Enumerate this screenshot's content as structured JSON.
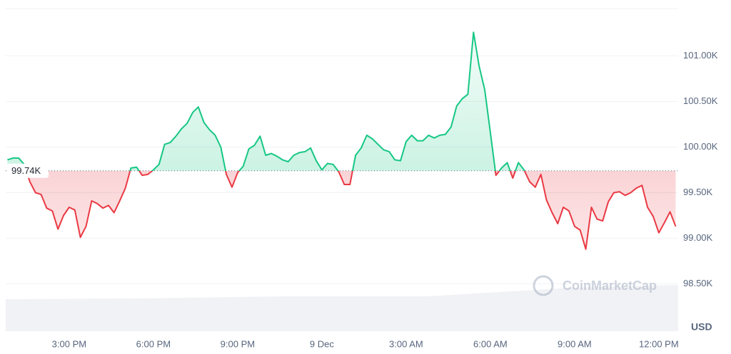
{
  "chart_data": {
    "type": "line",
    "watermark": "CoinMarketCap",
    "currency_label": "USD",
    "baseline": {
      "value": 99740,
      "label": "99.74K"
    },
    "color_up": "#16c784",
    "color_down": "#ea3943",
    "grid": true,
    "xlim": [
      12.74,
      36.69
    ],
    "ylim": [
      97980,
      101520
    ],
    "xticks": [
      {
        "value": 15,
        "label": "3:00 PM"
      },
      {
        "value": 18,
        "label": "6:00 PM"
      },
      {
        "value": 21,
        "label": "9:00 PM"
      },
      {
        "value": 24,
        "label": "9 Dec"
      },
      {
        "value": 27,
        "label": "3:00 AM"
      },
      {
        "value": 30,
        "label": "6:00 AM"
      },
      {
        "value": 33,
        "label": "9:00 AM"
      },
      {
        "value": 36,
        "label": "12:00 PM"
      }
    ],
    "yticks": [
      {
        "value": 98500,
        "label": "98.50K"
      },
      {
        "value": 99000,
        "label": "99.00K"
      },
      {
        "value": 99500,
        "label": "99.50K"
      },
      {
        "value": 100000,
        "label": "100.00K"
      },
      {
        "value": 100500,
        "label": "100.50K"
      },
      {
        "value": 101000,
        "label": "101.00K"
      }
    ],
    "x": [
      12.8,
      13.0,
      13.2,
      13.4,
      13.6,
      13.8,
      14.0,
      14.2,
      14.4,
      14.6,
      14.8,
      15.0,
      15.2,
      15.4,
      15.6,
      15.8,
      16.0,
      16.2,
      16.4,
      16.6,
      16.8,
      17.0,
      17.2,
      17.4,
      17.6,
      17.8,
      18.0,
      18.2,
      18.4,
      18.6,
      18.8,
      19.0,
      19.2,
      19.4,
      19.6,
      19.8,
      20.0,
      20.2,
      20.4,
      20.6,
      20.8,
      21.0,
      21.2,
      21.4,
      21.6,
      21.8,
      22.0,
      22.2,
      22.4,
      22.6,
      22.8,
      23.0,
      23.2,
      23.4,
      23.6,
      23.8,
      24.0,
      24.2,
      24.4,
      24.6,
      24.8,
      25.0,
      25.2,
      25.4,
      25.6,
      25.8,
      26.0,
      26.2,
      26.4,
      26.6,
      26.8,
      27.0,
      27.2,
      27.4,
      27.6,
      27.8,
      28.0,
      28.2,
      28.4,
      28.6,
      28.8,
      29.0,
      29.2,
      29.4,
      29.6,
      29.8,
      30.0,
      30.2,
      30.4,
      30.6,
      30.8,
      31.0,
      31.2,
      31.4,
      31.6,
      31.8,
      32.0,
      32.2,
      32.4,
      32.6,
      32.8,
      33.0,
      33.2,
      33.4,
      33.6,
      33.8,
      34.0,
      34.2,
      34.4,
      34.6,
      34.8,
      35.0,
      35.2,
      35.4,
      35.6,
      35.8,
      36.0,
      36.2,
      36.4,
      36.6
    ],
    "values": [
      99860,
      99880,
      99880,
      99810,
      99620,
      99500,
      99480,
      99330,
      99300,
      99100,
      99250,
      99340,
      99310,
      99010,
      99130,
      99410,
      99380,
      99330,
      99360,
      99280,
      99410,
      99550,
      99770,
      99780,
      99690,
      99700,
      99750,
      99810,
      100030,
      100050,
      100120,
      100200,
      100260,
      100380,
      100440,
      100270,
      100190,
      100130,
      100000,
      99700,
      99560,
      99720,
      99790,
      99980,
      100020,
      100120,
      99910,
      99930,
      99900,
      99860,
      99840,
      99910,
      99940,
      99950,
      99990,
      99850,
      99750,
      99820,
      99810,
      99730,
      99590,
      99590,
      99910,
      99990,
      100130,
      100090,
      100030,
      99970,
      99950,
      99860,
      99850,
      100060,
      100130,
      100070,
      100070,
      100130,
      100100,
      100130,
      100140,
      100220,
      100450,
      100530,
      100580,
      101260,
      100890,
      100630,
      100160,
      99690,
      99770,
      99830,
      99660,
      99830,
      99750,
      99620,
      99560,
      99700,
      99420,
      99280,
      99160,
      99340,
      99300,
      99130,
      99090,
      98880,
      99340,
      99210,
      99190,
      99400,
      99500,
      99510,
      99470,
      99500,
      99550,
      99580,
      99340,
      99240,
      99060,
      99170,
      99290,
      99130
    ]
  }
}
